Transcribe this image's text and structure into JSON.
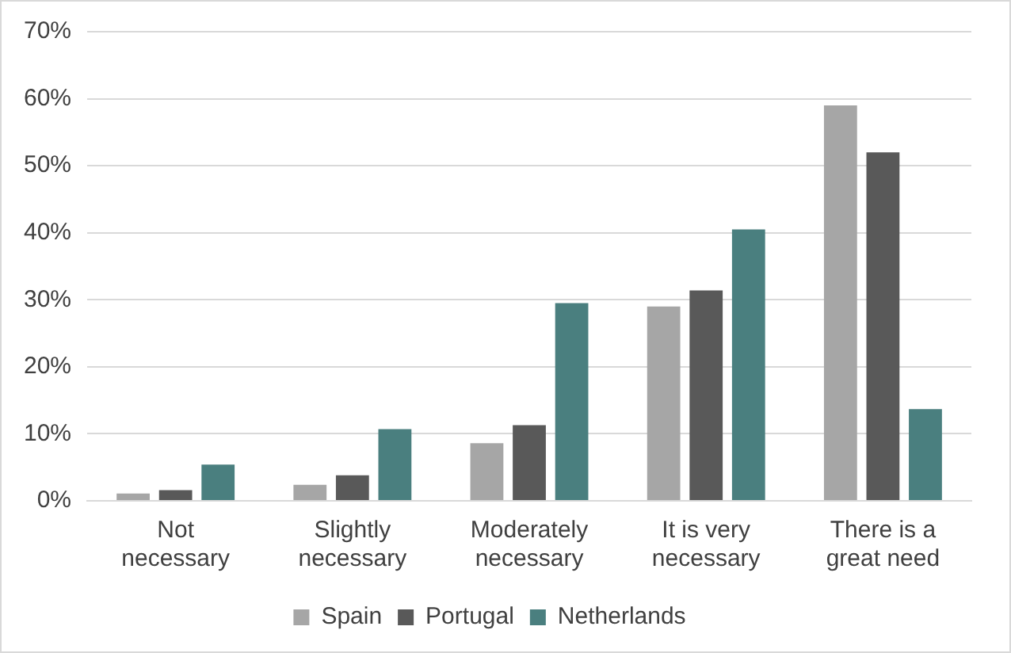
{
  "chart_data": {
    "type": "bar",
    "categories": [
      "Not necessary",
      "Slightly necessary",
      "Moderately necessary",
      "It is very necessary",
      "There is a great need"
    ],
    "series": [
      {
        "name": "Spain",
        "color": "#a6a6a6",
        "values": [
          1.1,
          2.4,
          8.6,
          29,
          59
        ]
      },
      {
        "name": "Portugal",
        "color": "#595959",
        "values": [
          1.6,
          3.8,
          11.3,
          31.4,
          52
        ]
      },
      {
        "name": "Netherlands",
        "color": "#4a7f7f",
        "values": [
          5.4,
          10.7,
          29.5,
          40.5,
          13.7
        ]
      }
    ],
    "ylim": [
      0,
      70
    ],
    "yticks": [
      {
        "value": 0,
        "label": "0%"
      },
      {
        "value": 10,
        "label": "10%"
      },
      {
        "value": 20,
        "label": "20%"
      },
      {
        "value": 30,
        "label": "30%"
      },
      {
        "value": 40,
        "label": "40%"
      },
      {
        "value": 50,
        "label": "50%"
      },
      {
        "value": 60,
        "label": "60%"
      },
      {
        "value": 70,
        "label": "70%"
      }
    ],
    "grid": "y",
    "legend": "bottom"
  }
}
